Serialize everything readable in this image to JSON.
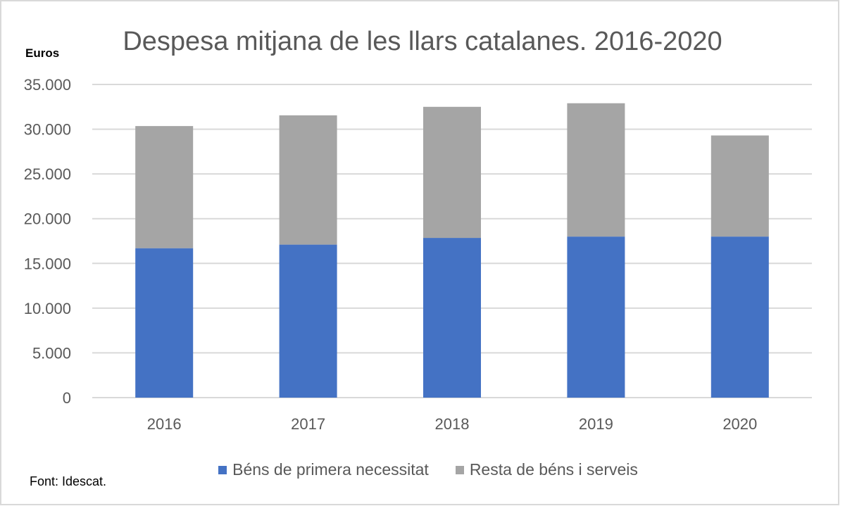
{
  "chart_data": {
    "type": "bar",
    "stacked": true,
    "title": "Despesa mitjana de les llars catalanes. 2016-2020",
    "ylabel": "Euros",
    "xlabel": "",
    "categories": [
      "2016",
      "2017",
      "2018",
      "2019",
      "2020"
    ],
    "series": [
      {
        "name": "Béns de primera necessitat",
        "color": "#4472c4",
        "values": [
          16700,
          17100,
          17850,
          18000,
          18000
        ]
      },
      {
        "name": "Resta de béns i serveis",
        "color": "#a5a5a5",
        "values": [
          13650,
          14450,
          14650,
          14900,
          11300
        ]
      }
    ],
    "totals": [
      30350,
      31550,
      32500,
      32900,
      29300
    ],
    "ylim": [
      0,
      35000
    ],
    "yticks": [
      0,
      5000,
      10000,
      15000,
      20000,
      25000,
      30000,
      35000
    ],
    "ytick_labels": [
      "0",
      "5.000",
      "10.000",
      "15.000",
      "20.000",
      "25.000",
      "30.000",
      "35.000"
    ],
    "grid": true,
    "legend_position": "bottom",
    "source": "Font: Idescat."
  }
}
